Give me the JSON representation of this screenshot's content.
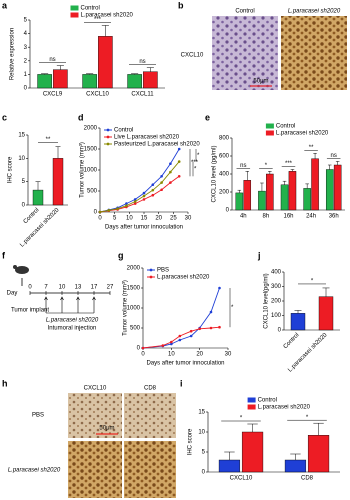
{
  "chart_data": [
    {
      "type": "bar",
      "ylabel": "Relative expression",
      "categories": [
        "CXCL9",
        "CXCL10",
        "CXCL11"
      ],
      "ylim": [
        0,
        5
      ],
      "yticks": [
        0,
        1,
        2,
        3,
        4,
        5
      ],
      "legend": "top",
      "series": [
        {
          "name": "Control",
          "color": "#22b14c",
          "values": [
            1,
            1,
            1
          ],
          "errors": [
            0.05,
            0.05,
            0.05
          ]
        },
        {
          "name": "L.paracasei sh2020",
          "color": "#ed1c24",
          "values": [
            1.35,
            3.8,
            1.2
          ],
          "errors": [
            0.3,
            0.8,
            0.3
          ]
        }
      ],
      "significance": [
        "ns",
        "***",
        "ns"
      ]
    },
    {
      "type": "bar",
      "ylabel": "IHC score",
      "categories": [
        "Control",
        "L.paracasei sh2020"
      ],
      "values": [
        3.2,
        10
      ],
      "errors": [
        1.8,
        2.5
      ],
      "colors": [
        "#22b14c",
        "#ed1c24"
      ],
      "ylim": [
        0,
        15
      ],
      "yticks": [
        0,
        5,
        10,
        15
      ],
      "rotate_labels": true,
      "significance": [
        "**"
      ]
    },
    {
      "type": "line",
      "ylabel": "Tumor volume (mm³)",
      "xlabel": "Days after tumor innoculation",
      "x": [
        0,
        3,
        6,
        9,
        12,
        15,
        18,
        21,
        24,
        27
      ],
      "xlim": [
        0,
        30
      ],
      "xticks": [
        0,
        5,
        10,
        15,
        20,
        25,
        30
      ],
      "ylim": [
        0,
        2000
      ],
      "yticks": [
        0,
        500,
        1000,
        1500,
        2000
      ],
      "legend": "top-left",
      "series": [
        {
          "name": "Control",
          "color": "#1f3fd6",
          "values": [
            0,
            50,
            100,
            200,
            300,
            450,
            650,
            850,
            1150,
            1500
          ]
        },
        {
          "name": "Live L.paracasei sh2020",
          "color": "#ed1c24",
          "values": [
            0,
            30,
            60,
            120,
            200,
            300,
            400,
            530,
            700,
            850
          ]
        },
        {
          "name": "Pasteurized L.paracasei sh2020",
          "color": "#8a8a00",
          "values": [
            0,
            40,
            80,
            150,
            250,
            380,
            520,
            700,
            950,
            1200
          ]
        }
      ],
      "significance": [
        "***",
        "*",
        "*"
      ]
    },
    {
      "type": "bar",
      "ylabel": "CXCL10 level (pg/ml)",
      "categories": [
        "4h",
        "8h",
        "16h",
        "24h",
        "36h"
      ],
      "ylim": [
        0,
        800
      ],
      "yticks": [
        0,
        200,
        400,
        600,
        800
      ],
      "legend": "top",
      "series": [
        {
          "name": "Control",
          "color": "#22b14c",
          "values": [
            190,
            210,
            280,
            240,
            450
          ],
          "errors": [
            30,
            90,
            40,
            50,
            50
          ]
        },
        {
          "name": "L.paracasei sh2020",
          "color": "#ed1c24",
          "values": [
            330,
            400,
            430,
            570,
            500
          ],
          "errors": [
            100,
            30,
            20,
            60,
            40
          ]
        }
      ],
      "significance": [
        "ns",
        "*",
        "***",
        "**",
        "ns"
      ]
    },
    {
      "type": "line",
      "ylabel": "Tumor volume (mm³)",
      "xlabel": "Days after tumor innoculation",
      "x": [
        0,
        7,
        10,
        13,
        17,
        20,
        24,
        27
      ],
      "xlim": [
        0,
        30
      ],
      "xticks": [
        0,
        10,
        20,
        30
      ],
      "ylim": [
        0,
        2000
      ],
      "yticks": [
        0,
        500,
        1000,
        1500,
        2000
      ],
      "legend": "top-left",
      "series": [
        {
          "name": "PBS",
          "color": "#1f3fd6",
          "values": [
            0,
            50,
            100,
            200,
            300,
            500,
            900,
            1500
          ]
        },
        {
          "name": "L.paracasei sh2020",
          "color": "#ed1c24",
          "values": [
            0,
            60,
            150,
            300,
            420,
            480,
            500,
            520
          ]
        }
      ],
      "significance": [
        "*"
      ]
    },
    {
      "type": "bar",
      "ylabel": "CXCL10 level(pg/ml)",
      "categories": [
        "Control",
        "L.paracasei sh2020"
      ],
      "values": [
        115,
        230
      ],
      "errors": [
        20,
        60
      ],
      "colors": [
        "#1f3fd6",
        "#ed1c24"
      ],
      "ylim": [
        0,
        400
      ],
      "yticks": [
        0,
        100,
        200,
        300,
        400
      ],
      "rotate_labels": true,
      "significance": [
        "*"
      ]
    },
    {
      "type": "bar",
      "ylabel": "IHC score",
      "categories": [
        "CXCL10",
        "CD8"
      ],
      "ylim": [
        0,
        15
      ],
      "yticks": [
        0,
        5,
        10,
        15
      ],
      "legend": "top",
      "series": [
        {
          "name": "Control",
          "color": "#1f3fd6",
          "values": [
            3,
            3
          ],
          "errors": [
            2,
            1.5
          ]
        },
        {
          "name": "L.paracasei sh2020",
          "color": "#ed1c24",
          "values": [
            10,
            9.2
          ],
          "errors": [
            2,
            3
          ]
        }
      ],
      "significance": [
        "*",
        "*"
      ]
    }
  ],
  "figure": {
    "panel_labels": [
      "a",
      "b",
      "c",
      "d",
      "e",
      "f",
      "g",
      "j",
      "h",
      "i"
    ],
    "b": {
      "columns": [
        "Control",
        "L.paracasei sh2020"
      ],
      "row": "CXCL10",
      "scale": "50μm"
    },
    "f": {
      "day_label": "Day",
      "days": [
        0,
        7,
        10,
        13,
        17,
        27
      ],
      "implant": "Tumor implant",
      "agent": "L.paracasei sh2020",
      "injection": "Intumoral injection"
    },
    "h": {
      "columns": [
        "CXCL10",
        "CD8"
      ],
      "rows": [
        "PBS",
        "L.paracasei sh2020"
      ],
      "scale": "50μm"
    }
  }
}
